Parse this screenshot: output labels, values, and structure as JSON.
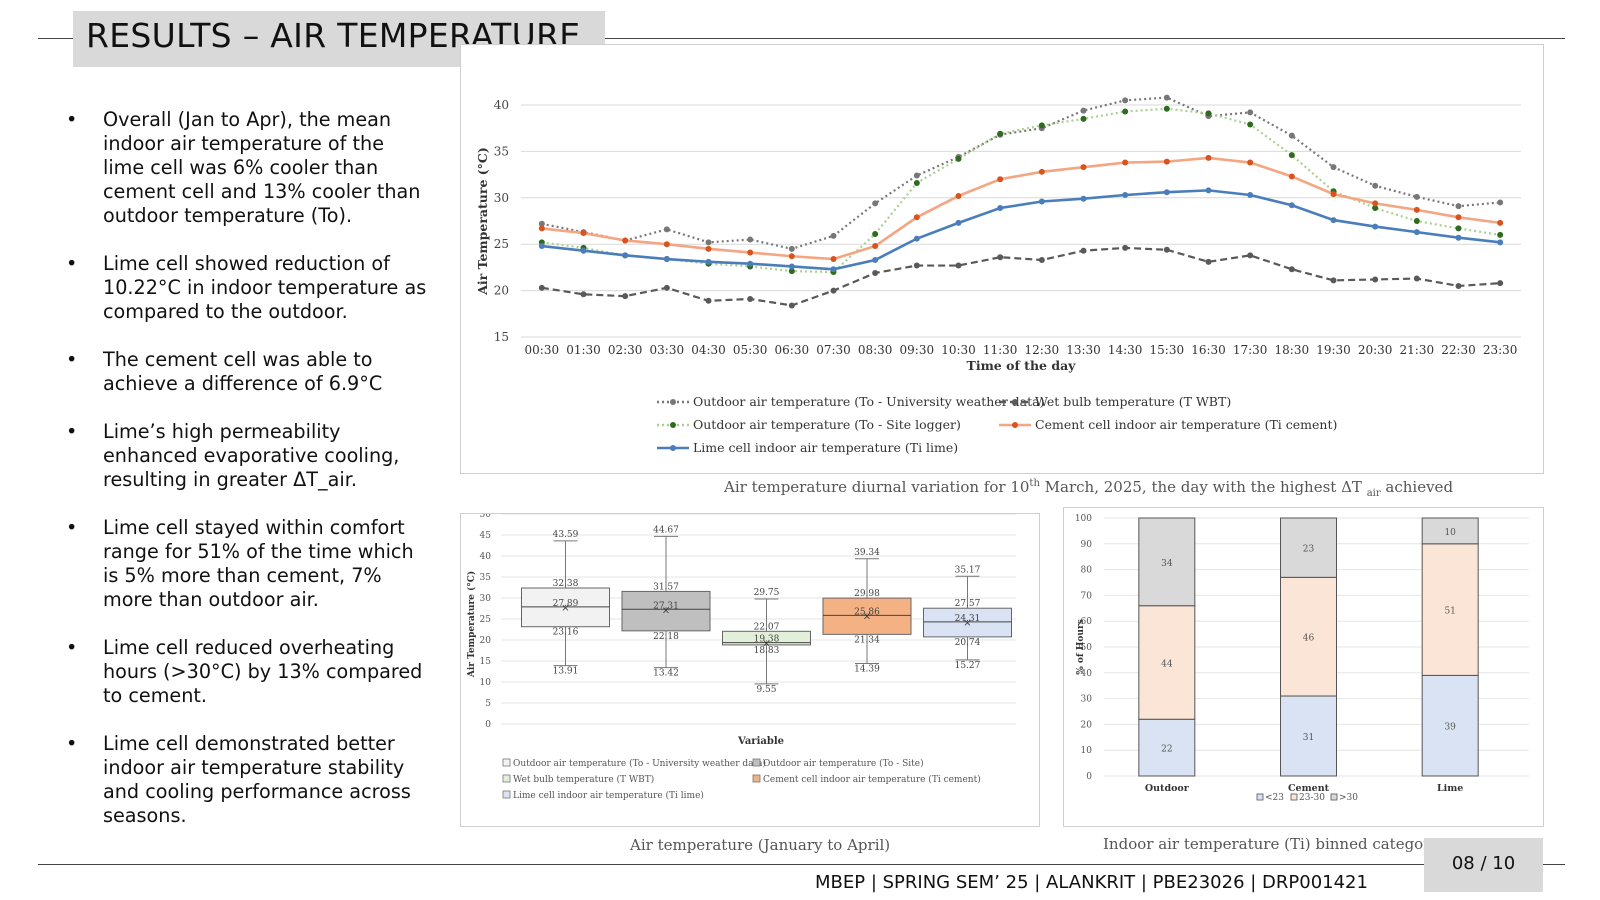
{
  "slide": {
    "title": "RESULTS – AIR TEMPERATURE",
    "footer": "MBEP | SPRING SEM’ 25 | ALANKRIT | PBE23026 | DRP001421",
    "page": "08 / 10"
  },
  "bullets": [
    "Overall (Jan to Apr), the mean indoor air temperature of the lime cell was 6% cooler than cement cell and 13% cooler than outdoor temperature (To).",
    "Lime cell showed reduction of 10.22°C in indoor temperature as compared to the outdoor.",
    "The cement cell was able to achieve a difference of 6.9°C",
    "Lime’s high permeability enhanced evaporative cooling, resulting in greater ΔT_air.",
    "Lime cell stayed within comfort range for 51% of the time which is 5% more than cement, 7% more than outdoor air.",
    "Lime cell reduced overheating hours (>30°C) by 13% compared to cement.",
    "Lime cell demonstrated better indoor air temperature stability and cooling performance across seasons."
  ],
  "captions": {
    "line": "Air temperature diurnal variation for 10th March, 2025, the day with the highest ΔT air achieved",
    "box": "Air temperature (January to April)",
    "bar": "Indoor air temperature (Ti) binned categories"
  },
  "chart_data": [
    {
      "type": "line",
      "title": "",
      "xlabel": "Time of the day",
      "ylabel": "Air Temperature (°C)",
      "ylim": [
        15,
        40
      ],
      "yticks": [
        15,
        20,
        25,
        30,
        35,
        40
      ],
      "grid": true,
      "legend_position": "bottom",
      "x": [
        "00:30",
        "01:30",
        "02:30",
        "03:30",
        "04:30",
        "05:30",
        "06:30",
        "07:30",
        "08:30",
        "09:30",
        "10:30",
        "11:30",
        "12:30",
        "13:30",
        "14:30",
        "15:30",
        "16:30",
        "17:30",
        "18:30",
        "19:30",
        "20:30",
        "21:30",
        "22:30",
        "23:30"
      ],
      "series": [
        {
          "name": "Outdoor air temperature (To - University weather data)",
          "color": "#777777",
          "style": "dotted",
          "values": [
            27.2,
            26.3,
            25.4,
            26.6,
            25.2,
            25.5,
            24.5,
            25.9,
            29.4,
            32.4,
            34.4,
            36.8,
            37.5,
            39.4,
            40.5,
            40.8,
            38.8,
            39.2,
            36.7,
            33.3,
            31.3,
            30.1,
            29.1,
            29.5
          ]
        },
        {
          "name": "Wet bulb temperature (T WBT)",
          "color": "#595959",
          "style": "dashed",
          "values": [
            20.3,
            19.6,
            19.4,
            20.3,
            18.9,
            19.1,
            18.4,
            20.0,
            21.9,
            22.7,
            22.7,
            23.6,
            23.3,
            24.3,
            24.6,
            24.4,
            23.1,
            23.8,
            22.3,
            21.1,
            21.2,
            21.3,
            20.5,
            20.8
          ]
        },
        {
          "name": "Outdoor air temperature (To - Site logger)",
          "color": "#a9d18e",
          "style": "dotted",
          "values": [
            25.2,
            24.6,
            23.8,
            23.4,
            22.9,
            22.6,
            22.1,
            22.0,
            26.1,
            31.6,
            34.2,
            36.9,
            37.8,
            38.5,
            39.3,
            39.6,
            39.1,
            37.9,
            34.6,
            30.7,
            28.9,
            27.5,
            26.7,
            26.0
          ]
        },
        {
          "name": "Cement cell indoor air temperature (Ti cement)",
          "color": "#f4a582",
          "style": "solid",
          "values": [
            26.7,
            26.2,
            25.4,
            25.0,
            24.5,
            24.1,
            23.7,
            23.4,
            24.8,
            27.9,
            30.2,
            32.0,
            32.8,
            33.3,
            33.8,
            33.9,
            34.3,
            33.8,
            32.3,
            30.4,
            29.4,
            28.7,
            27.9,
            27.3
          ]
        },
        {
          "name": "Lime cell indoor air temperature (Ti lime)",
          "color": "#4a7ebb",
          "style": "solid",
          "values": [
            24.8,
            24.3,
            23.8,
            23.4,
            23.1,
            22.9,
            22.6,
            22.3,
            23.3,
            25.6,
            27.3,
            28.9,
            29.6,
            29.9,
            30.3,
            30.6,
            30.8,
            30.3,
            29.2,
            27.6,
            26.9,
            26.3,
            25.7,
            25.2
          ]
        }
      ]
    },
    {
      "type": "box",
      "title": "",
      "xlabel": "Variable",
      "ylabel": "Air Temperature (°C)",
      "ylim": [
        0,
        50
      ],
      "yticks": [
        0,
        5,
        10,
        15,
        20,
        25,
        30,
        35,
        40,
        45,
        50
      ],
      "grid": true,
      "legend_position": "bottom",
      "series": [
        {
          "name": "Outdoor air temperature (To - University weather data)",
          "color": "#f2f2f2",
          "min": 13.91,
          "q1": 23.16,
          "median": 27.89,
          "q3": 32.38,
          "max": 43.59,
          "mean": 27.89
        },
        {
          "name": "Outdoor air temperature (To - Site)",
          "color": "#bfbfbf",
          "min": 13.42,
          "q1": 22.18,
          "median": 27.31,
          "q3": 31.57,
          "max": 44.67,
          "mean": 27.31
        },
        {
          "name": "Wet bulb temperature (T WBT)",
          "color": "#e2f0d9",
          "min": 9.55,
          "q1": 18.83,
          "median": 19.38,
          "q3": 22.07,
          "max": 29.75,
          "mean": 19.38
        },
        {
          "name": "Cement cell indoor air temperature (Ti cement)",
          "color": "#f4b183",
          "min": 14.39,
          "q1": 21.34,
          "median": 25.86,
          "q3": 29.98,
          "max": 39.34,
          "mean": 25.86
        },
        {
          "name": "Lime cell indoor air temperature (Ti lime)",
          "color": "#dae3f3",
          "min": 15.27,
          "q1": 20.74,
          "median": 24.31,
          "q3": 27.57,
          "max": 35.17,
          "mean": 24.31
        }
      ]
    },
    {
      "type": "bar",
      "stacked": true,
      "title": "",
      "xlabel": "",
      "ylabel": "% of Hours",
      "ylim": [
        0,
        100
      ],
      "yticks": [
        0,
        10,
        20,
        30,
        40,
        50,
        60,
        70,
        80,
        90,
        100
      ],
      "grid": true,
      "legend_position": "bottom",
      "categories": [
        "Outdoor",
        "Cement",
        "Lime"
      ],
      "series": [
        {
          "name": "<23",
          "color": "#dae3f3",
          "values": [
            22,
            31,
            39
          ]
        },
        {
          "name": "23-30",
          "color": "#fbe5d6",
          "values": [
            44,
            46,
            51
          ]
        },
        {
          "name": ">30",
          "color": "#d9d9d9",
          "values": [
            34,
            23,
            10
          ]
        }
      ]
    }
  ]
}
